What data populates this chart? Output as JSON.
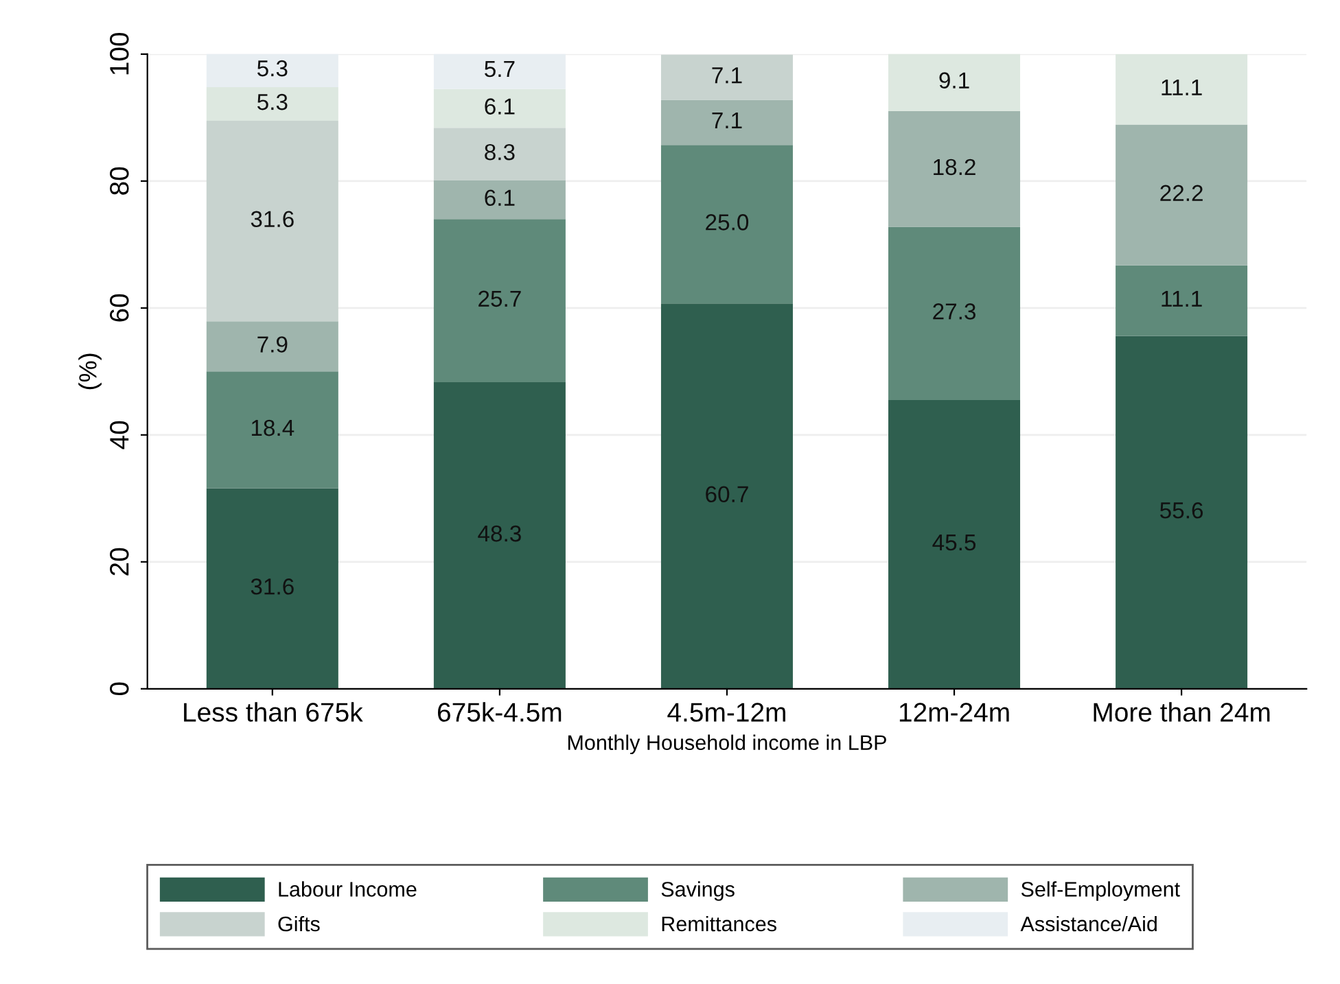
{
  "chart_data": {
    "type": "bar",
    "stacked": true,
    "xlabel": "Monthly Household income in LBP",
    "ylabel": "(%)",
    "categories": [
      "Less than 675k",
      "675k-4.5m",
      "4.5m-12m",
      "12m-24m",
      "More than 24m"
    ],
    "series": [
      {
        "name": "Labour Income",
        "color": "#2f5f4f",
        "values": [
          31.6,
          48.3,
          60.7,
          45.5,
          55.6
        ]
      },
      {
        "name": "Savings",
        "color": "#5f8a7a",
        "values": [
          18.4,
          25.7,
          25.0,
          27.3,
          11.1
        ],
        "value_labels": [
          "18.4",
          "25.7",
          "25.0",
          "27.3",
          "11.1"
        ]
      },
      {
        "name": "Self-Employment",
        "color": "#9fb5ad",
        "values": [
          7.9,
          6.1,
          7.1,
          18.2,
          22.2
        ]
      },
      {
        "name": "Gifts",
        "color": "#c8d3cf",
        "values": [
          31.6,
          8.3,
          7.1,
          null,
          null
        ]
      },
      {
        "name": "Remittances",
        "color": "#dde8e0",
        "values": [
          5.3,
          6.1,
          null,
          9.1,
          11.1
        ]
      },
      {
        "name": "Assistance/Aid",
        "color": "#e8eef2",
        "values": [
          5.3,
          5.7,
          null,
          null,
          null
        ]
      }
    ],
    "ylim": [
      0,
      100
    ],
    "yticks": [
      0,
      20,
      40,
      60,
      80,
      100
    ],
    "grid": "y",
    "legend": "bottom",
    "data_labels": true
  }
}
